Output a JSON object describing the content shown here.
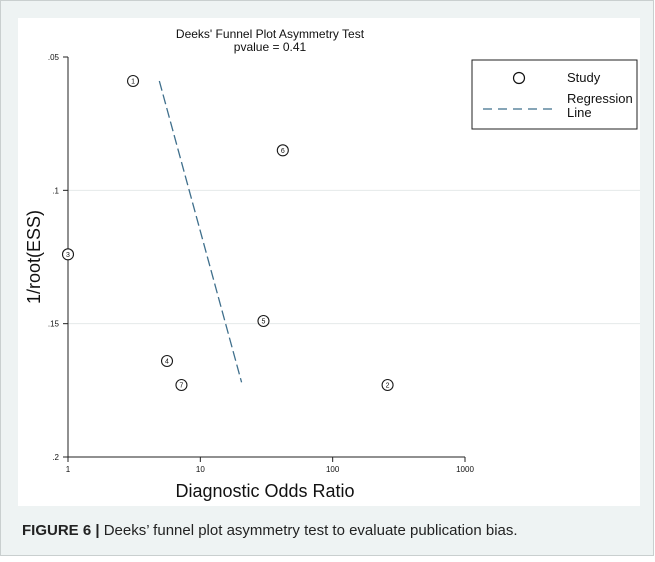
{
  "figure": {
    "label": "FIGURE 6 |",
    "caption": "Deeks’ funnel plot asymmetry test to evaluate publication bias."
  },
  "chart_data": {
    "type": "scatter",
    "title": "Deeks' Funnel Plot Asymmetry Test",
    "subtitle": "pvalue  =   0.41",
    "xlabel": "Diagnostic Odds Ratio",
    "ylabel": "1/root(ESS)",
    "x_scale": "log",
    "xlim": [
      1,
      1000
    ],
    "ylim": [
      0.05,
      0.2
    ],
    "y_reversed": true,
    "x_ticks": [
      1,
      10,
      100,
      1000
    ],
    "x_tick_labels": [
      "1",
      "10",
      "100",
      "1000"
    ],
    "y_ticks": [
      0.05,
      0.1,
      0.15,
      0.2
    ],
    "y_tick_labels": [
      ".05",
      ".1",
      ".15",
      ".2"
    ],
    "grid": "horizontal",
    "legend_position": "right",
    "legend": [
      {
        "label": "Study",
        "marker": "circle"
      },
      {
        "label": "Regression Line",
        "marker": "dashed-line"
      }
    ],
    "series": [
      {
        "name": "Study",
        "points": [
          {
            "label": "1",
            "x": 3.1,
            "y": 0.059
          },
          {
            "label": "2",
            "x": 260,
            "y": 0.173
          },
          {
            "label": "3",
            "x": 1.0,
            "y": 0.124
          },
          {
            "label": "4",
            "x": 5.6,
            "y": 0.164
          },
          {
            "label": "5",
            "x": 30,
            "y": 0.149
          },
          {
            "label": "6",
            "x": 42,
            "y": 0.085
          },
          {
            "label": "7",
            "x": 7.2,
            "y": 0.173
          }
        ]
      },
      {
        "name": "Regression Line",
        "line": [
          {
            "x": 4.9,
            "y": 0.059
          },
          {
            "x": 20.5,
            "y": 0.172
          }
        ]
      }
    ],
    "colors": {
      "regression": "#3f6f8c",
      "marker": "#1a1a1a",
      "gridline": "#e5e9e9",
      "panel_bg": "#eef3f3"
    }
  }
}
